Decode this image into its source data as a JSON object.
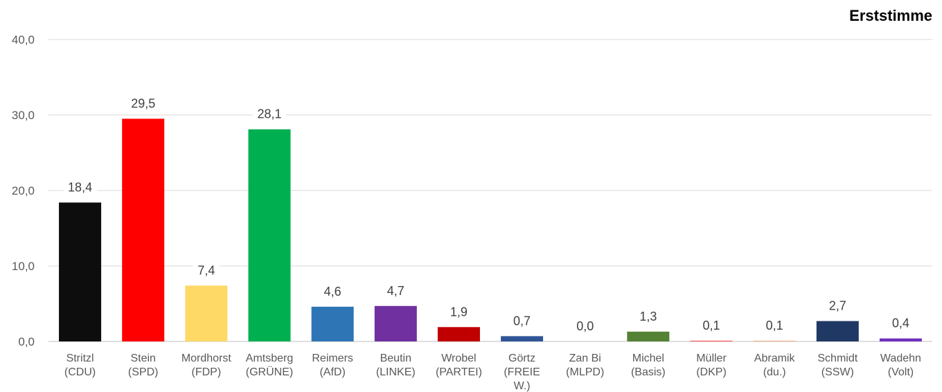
{
  "chart_data": {
    "type": "bar",
    "title": "Erststimme",
    "xlabel": "",
    "ylabel": "",
    "ylim": [
      0,
      40
    ],
    "yticks": [
      "0,0",
      "10,0",
      "20,0",
      "30,0",
      "40,0"
    ],
    "grid": true,
    "categories": [
      [
        "Stritzl",
        "(CDU)"
      ],
      [
        "Stein",
        "(SPD)"
      ],
      [
        "Mordhorst",
        "(FDP)"
      ],
      [
        "Amtsberg",
        "(GRÜNE)"
      ],
      [
        "Reimers",
        "(AfD)"
      ],
      [
        "Beutin",
        "(LINKE)"
      ],
      [
        "Wrobel",
        "(PARTEI)"
      ],
      [
        "Görtz",
        "(FREIE",
        "W.)"
      ],
      [
        "Zan Bi",
        "(MLPD)"
      ],
      [
        "Michel",
        "(Basis)"
      ],
      [
        "Müller",
        "(DKP)"
      ],
      [
        "Abramik",
        "(du.)"
      ],
      [
        "Schmidt",
        "(SSW)"
      ],
      [
        "Wadehn",
        "(Volt)"
      ]
    ],
    "values": [
      18.4,
      29.5,
      7.4,
      28.1,
      4.6,
      4.7,
      1.9,
      0.7,
      0.0,
      1.3,
      0.1,
      0.1,
      2.7,
      0.4
    ],
    "value_labels": [
      "18,4",
      "29,5",
      "7,4",
      "28,1",
      "4,6",
      "4,7",
      "1,9",
      "0,7",
      "0,0",
      "1,3",
      "0,1",
      "0,1",
      "2,7",
      "0,4"
    ],
    "colors": [
      "#0d0d0d",
      "#ff0000",
      "#ffd966",
      "#00b050",
      "#2e75b6",
      "#7030a0",
      "#c00000",
      "#2f5597",
      "#ffffff",
      "#548235",
      "#ff5050",
      "#f4b183",
      "#203864",
      "#7030c0"
    ]
  }
}
